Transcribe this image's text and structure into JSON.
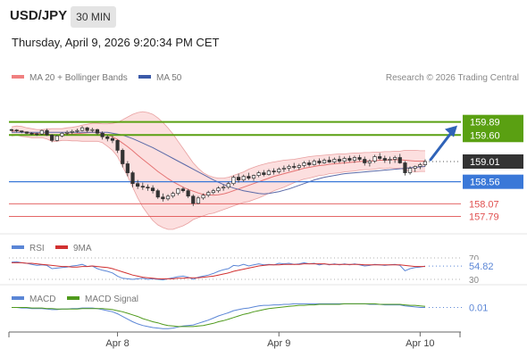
{
  "header": {
    "pair": "USD/JPY",
    "timeframe": "30 MIN",
    "timestamp": "Thursday, April 9, 2026 9:20:34 PM CET"
  },
  "legend": {
    "bollinger_label": "MA 20 + Bollinger Bands",
    "ma50_label": "MA 50",
    "rsi_label": "RSI",
    "rsi_ma_label": "9MA",
    "macd_label": "MACD",
    "macd_signal_label": "MACD Signal"
  },
  "credit": "Research © 2026 Trading Central",
  "colors": {
    "candle": "#333333",
    "bollinger_fill": "#fcd9d9",
    "bollinger_line": "#e8a0a0",
    "ma20": "#e57373",
    "ma50": "#5b6aa8",
    "resistance": "#5aa012",
    "support_pivot": "#3a78d8",
    "support": "#e05050",
    "arrow": "#2f63b8",
    "rsi": "#5b86d6",
    "rsi_ma": "#d13030",
    "macd": "#5b86d6",
    "macd_signal": "#4f9a1c",
    "price_tag": "#333333"
  },
  "chart_data": [
    {
      "type": "candlestick",
      "ylim": [
        157.6,
        160.38
      ],
      "x_ticks": [
        "Apr 8",
        "Apr 9",
        "Apr 10"
      ],
      "ohlc": [
        [
          159.72,
          159.74,
          159.68,
          159.71
        ],
        [
          159.71,
          159.73,
          159.66,
          159.69
        ],
        [
          159.69,
          159.7,
          159.64,
          159.67
        ],
        [
          159.67,
          159.68,
          159.62,
          159.64
        ],
        [
          159.64,
          159.66,
          159.6,
          159.63
        ],
        [
          159.63,
          159.65,
          159.58,
          159.62
        ],
        [
          159.62,
          159.72,
          159.6,
          159.7
        ],
        [
          159.7,
          159.74,
          159.58,
          159.6
        ],
        [
          159.6,
          159.62,
          159.44,
          159.48
        ],
        [
          159.48,
          159.6,
          159.46,
          159.58
        ],
        [
          159.58,
          159.66,
          159.55,
          159.64
        ],
        [
          159.64,
          159.7,
          159.6,
          159.66
        ],
        [
          159.66,
          159.72,
          159.62,
          159.68
        ],
        [
          159.68,
          159.74,
          159.65,
          159.7
        ],
        [
          159.7,
          159.8,
          159.68,
          159.76
        ],
        [
          159.76,
          159.78,
          159.66,
          159.7
        ],
        [
          159.7,
          159.76,
          159.66,
          159.72
        ],
        [
          159.72,
          159.74,
          159.6,
          159.64
        ],
        [
          159.64,
          159.68,
          159.5,
          159.56
        ],
        [
          159.56,
          159.6,
          159.46,
          159.52
        ],
        [
          159.52,
          159.58,
          159.42,
          159.48
        ],
        [
          159.48,
          159.5,
          159.2,
          159.26
        ],
        [
          159.26,
          159.3,
          158.88,
          158.96
        ],
        [
          158.96,
          159.02,
          158.68,
          158.76
        ],
        [
          158.76,
          158.8,
          158.44,
          158.52
        ],
        [
          158.52,
          158.6,
          158.4,
          158.46
        ],
        [
          158.46,
          158.54,
          158.38,
          158.44
        ],
        [
          158.44,
          158.5,
          158.36,
          158.42
        ],
        [
          158.42,
          158.48,
          158.3,
          158.36
        ],
        [
          158.36,
          158.4,
          158.18,
          158.22
        ],
        [
          158.22,
          158.3,
          158.12,
          158.18
        ],
        [
          158.18,
          158.28,
          158.14,
          158.24
        ],
        [
          158.24,
          158.34,
          158.2,
          158.3
        ],
        [
          158.3,
          158.42,
          158.26,
          158.4
        ],
        [
          158.4,
          158.44,
          158.32,
          158.36
        ],
        [
          158.36,
          158.4,
          158.2,
          158.24
        ],
        [
          158.24,
          158.28,
          158.02,
          158.08
        ],
        [
          158.08,
          158.24,
          158.06,
          158.2
        ],
        [
          158.2,
          158.3,
          158.16,
          158.26
        ],
        [
          158.26,
          158.36,
          158.22,
          158.32
        ],
        [
          158.32,
          158.4,
          158.28,
          158.36
        ],
        [
          158.36,
          158.46,
          158.32,
          158.42
        ],
        [
          158.42,
          158.5,
          158.36,
          158.44
        ],
        [
          158.44,
          158.56,
          158.4,
          158.52
        ],
        [
          158.52,
          158.7,
          158.48,
          158.66
        ],
        [
          158.66,
          158.74,
          158.54,
          158.6
        ],
        [
          158.6,
          158.72,
          158.56,
          158.68
        ],
        [
          158.68,
          158.76,
          158.6,
          158.64
        ],
        [
          158.64,
          158.72,
          158.58,
          158.7
        ],
        [
          158.7,
          158.8,
          158.66,
          158.76
        ],
        [
          158.76,
          158.82,
          158.68,
          158.72
        ],
        [
          158.72,
          158.84,
          158.7,
          158.8
        ],
        [
          158.8,
          158.86,
          158.72,
          158.78
        ],
        [
          158.78,
          158.88,
          158.74,
          158.84
        ],
        [
          158.84,
          158.92,
          158.78,
          158.86
        ],
        [
          158.86,
          158.94,
          158.8,
          158.9
        ],
        [
          158.9,
          158.98,
          158.84,
          158.88
        ],
        [
          158.88,
          158.96,
          158.82,
          158.92
        ],
        [
          158.92,
          159.02,
          158.88,
          158.98
        ],
        [
          158.98,
          159.04,
          158.9,
          158.94
        ],
        [
          158.94,
          159.06,
          158.92,
          159.02
        ],
        [
          159.02,
          159.08,
          158.94,
          158.98
        ],
        [
          158.98,
          159.08,
          158.96,
          159.04
        ],
        [
          159.04,
          159.12,
          158.98,
          159.0
        ],
        [
          159.0,
          159.1,
          158.96,
          159.06
        ],
        [
          159.06,
          159.14,
          158.98,
          159.02
        ],
        [
          159.02,
          159.12,
          158.96,
          159.08
        ],
        [
          159.08,
          159.14,
          159.0,
          159.04
        ],
        [
          159.04,
          159.14,
          158.98,
          159.1
        ],
        [
          159.1,
          159.16,
          159.02,
          159.06
        ],
        [
          159.06,
          159.12,
          158.92,
          158.98
        ],
        [
          158.98,
          159.06,
          158.9,
          159.02
        ],
        [
          159.02,
          159.16,
          158.98,
          159.12
        ],
        [
          159.12,
          159.2,
          159.04,
          159.08
        ],
        [
          159.08,
          159.14,
          158.98,
          159.04
        ],
        [
          159.04,
          159.12,
          158.96,
          159.06
        ],
        [
          159.06,
          159.14,
          158.98,
          159.1
        ],
        [
          159.1,
          159.18,
          158.96,
          158.98
        ],
        [
          158.98,
          159.02,
          158.7,
          158.76
        ],
        [
          158.76,
          158.9,
          158.72,
          158.86
        ],
        [
          158.86,
          158.92,
          158.78,
          158.9
        ],
        [
          158.9,
          158.98,
          158.84,
          158.94
        ],
        [
          158.94,
          159.06,
          158.9,
          159.01
        ]
      ],
      "ma20": [
        159.68,
        159.7,
        159.68,
        159.66,
        159.64,
        159.63,
        159.63,
        159.62,
        159.6,
        159.6,
        159.61,
        159.62,
        159.62,
        159.63,
        159.64,
        159.65,
        159.66,
        159.66,
        159.64,
        159.6,
        159.56,
        159.5,
        159.42,
        159.34,
        159.25,
        159.15,
        159.06,
        158.97,
        158.88,
        158.79,
        158.71,
        158.63,
        158.56,
        158.5,
        158.44,
        158.39,
        158.35,
        158.31,
        158.28,
        158.27,
        158.26,
        158.27,
        158.29,
        158.32,
        158.36,
        158.4,
        158.44,
        158.48,
        158.52,
        158.56,
        158.6,
        158.64,
        158.68,
        158.71,
        158.74,
        158.77,
        158.8,
        158.83,
        158.86,
        158.88,
        158.9,
        158.92,
        158.93,
        158.95,
        158.96,
        158.97,
        158.98,
        158.99,
        159.0,
        159.01,
        159.02,
        159.02,
        159.03,
        159.04,
        159.04,
        159.05,
        159.05,
        159.05,
        159.04,
        159.03,
        159.02,
        159.02,
        159.02
      ],
      "bb_upper": [
        159.78,
        159.8,
        159.79,
        159.76,
        159.74,
        159.72,
        159.72,
        159.73,
        159.74,
        159.74,
        159.74,
        159.76,
        159.77,
        159.79,
        159.82,
        159.84,
        159.86,
        159.86,
        159.85,
        159.85,
        159.86,
        159.88,
        159.94,
        160.0,
        160.06,
        160.1,
        160.12,
        160.1,
        160.06,
        159.98,
        159.88,
        159.76,
        159.62,
        159.46,
        159.3,
        159.14,
        158.98,
        158.86,
        158.76,
        158.7,
        158.66,
        158.64,
        158.64,
        158.66,
        158.7,
        158.74,
        158.78,
        158.84,
        158.88,
        158.92,
        158.95,
        158.98,
        159.0,
        159.02,
        159.04,
        159.05,
        159.06,
        159.08,
        159.1,
        159.12,
        159.13,
        159.14,
        159.15,
        159.16,
        159.17,
        159.18,
        159.18,
        159.19,
        159.2,
        159.2,
        159.21,
        159.21,
        159.22,
        159.22,
        159.23,
        159.23,
        159.24,
        159.24,
        159.26,
        159.26,
        159.26,
        159.25,
        159.25
      ],
      "bb_lower": [
        159.58,
        159.6,
        159.57,
        159.56,
        159.54,
        159.54,
        159.54,
        159.51,
        159.46,
        159.46,
        159.48,
        159.48,
        159.47,
        159.47,
        159.46,
        159.46,
        159.46,
        159.46,
        159.43,
        159.35,
        159.26,
        159.12,
        158.9,
        158.68,
        158.44,
        158.2,
        158.0,
        157.84,
        157.7,
        157.6,
        157.54,
        157.5,
        157.5,
        157.54,
        157.58,
        157.64,
        157.72,
        157.76,
        157.8,
        157.84,
        157.86,
        157.9,
        157.94,
        157.98,
        158.02,
        158.06,
        158.1,
        158.12,
        158.16,
        158.2,
        158.25,
        158.3,
        158.36,
        158.4,
        158.44,
        158.49,
        158.54,
        158.58,
        158.62,
        158.64,
        158.67,
        158.7,
        158.71,
        158.74,
        158.75,
        158.76,
        158.78,
        158.79,
        158.8,
        158.82,
        158.83,
        158.83,
        158.84,
        158.86,
        158.85,
        158.87,
        158.86,
        158.86,
        158.82,
        158.8,
        158.78,
        158.79,
        158.79
      ],
      "ma50": [
        159.66,
        159.66,
        159.66,
        159.66,
        159.66,
        159.66,
        159.66,
        159.66,
        159.66,
        159.66,
        159.66,
        159.66,
        159.66,
        159.66,
        159.66,
        159.66,
        159.66,
        159.66,
        159.66,
        159.66,
        159.64,
        159.62,
        159.6,
        159.56,
        159.52,
        159.47,
        159.42,
        159.37,
        159.32,
        159.26,
        159.2,
        159.14,
        159.08,
        159.02,
        158.96,
        158.9,
        158.84,
        158.78,
        158.72,
        158.66,
        158.6,
        158.55,
        158.5,
        158.46,
        158.42,
        158.39,
        158.36,
        158.34,
        158.32,
        158.3,
        158.29,
        158.3,
        158.32,
        158.34,
        158.37,
        158.4,
        158.44,
        158.48,
        158.52,
        158.56,
        158.6,
        158.63,
        158.66,
        158.68,
        158.7,
        158.72,
        158.74,
        158.75,
        158.76,
        158.77,
        158.78,
        158.79,
        158.8,
        158.81,
        158.82,
        158.83,
        158.84,
        158.85,
        158.86,
        158.87,
        158.88,
        158.89,
        158.9
      ],
      "levels": {
        "resistance": [
          159.89,
          159.6
        ],
        "pivot": 158.56,
        "support": [
          158.07,
          157.79
        ]
      },
      "last_price": 159.01,
      "target": 159.89
    },
    {
      "type": "line",
      "name": "RSI",
      "ylim": [
        25,
        75
      ],
      "ticks": [
        30,
        70
      ],
      "last_value": 54.82,
      "rsi": [
        62,
        63,
        61,
        60,
        58,
        56,
        57,
        56,
        50,
        51,
        52,
        53,
        55,
        56,
        58,
        54,
        55,
        50,
        47,
        45,
        42,
        36,
        32,
        31,
        30,
        31,
        32,
        30,
        31,
        30,
        29,
        31,
        33,
        35,
        36,
        34,
        30,
        34,
        36,
        38,
        41,
        45,
        48,
        50,
        56,
        55,
        58,
        55,
        57,
        59,
        57,
        58,
        57,
        60,
        59,
        60,
        58,
        59,
        61,
        59,
        60,
        57,
        59,
        57,
        59,
        57,
        59,
        57,
        59,
        57,
        55,
        56,
        58,
        57,
        56,
        57,
        58,
        56,
        46,
        50,
        52,
        53,
        54.82
      ],
      "rsi_ma": [
        61,
        61,
        61,
        60,
        60,
        59,
        58,
        57,
        56,
        55,
        54,
        54,
        53,
        53,
        54,
        54,
        55,
        54,
        53,
        52,
        50,
        47,
        44,
        41,
        38,
        36,
        34,
        33,
        32,
        31,
        31,
        31,
        31,
        32,
        32,
        33,
        33,
        33,
        34,
        35,
        36,
        38,
        40,
        42,
        45,
        47,
        49,
        51,
        53,
        55,
        56,
        57,
        57,
        57,
        58,
        58,
        58,
        58,
        59,
        59,
        59,
        59,
        59,
        58,
        58,
        58,
        58,
        58,
        58,
        58,
        57,
        57,
        57,
        57,
        57,
        57,
        57,
        57,
        56,
        55,
        54,
        54,
        54
      ]
    },
    {
      "type": "line",
      "name": "MACD",
      "ylim": [
        -0.42,
        0.12
      ],
      "last_value": 0.01,
      "macd": [
        0.01,
        0.01,
        0.0,
        0.0,
        -0.01,
        -0.01,
        -0.01,
        -0.02,
        -0.03,
        -0.03,
        -0.02,
        -0.02,
        -0.01,
        -0.01,
        0.0,
        0.0,
        0.0,
        -0.01,
        -0.03,
        -0.05,
        -0.07,
        -0.11,
        -0.16,
        -0.21,
        -0.26,
        -0.3,
        -0.33,
        -0.35,
        -0.37,
        -0.38,
        -0.39,
        -0.39,
        -0.38,
        -0.36,
        -0.34,
        -0.33,
        -0.32,
        -0.29,
        -0.26,
        -0.23,
        -0.19,
        -0.15,
        -0.12,
        -0.09,
        -0.05,
        -0.03,
        -0.01,
        0.0,
        0.02,
        0.04,
        0.05,
        0.05,
        0.06,
        0.06,
        0.07,
        0.07,
        0.08,
        0.08,
        0.08,
        0.08,
        0.08,
        0.08,
        0.08,
        0.08,
        0.08,
        0.08,
        0.08,
        0.08,
        0.08,
        0.08,
        0.08,
        0.07,
        0.07,
        0.07,
        0.06,
        0.06,
        0.06,
        0.06,
        0.04,
        0.03,
        0.02,
        0.01,
        0.01
      ],
      "signal": [
        0.01,
        0.01,
        0.01,
        0.01,
        0.0,
        0.0,
        0.0,
        -0.01,
        -0.01,
        -0.02,
        -0.02,
        -0.02,
        -0.02,
        -0.02,
        -0.01,
        -0.01,
        -0.01,
        -0.01,
        -0.01,
        -0.02,
        -0.03,
        -0.05,
        -0.07,
        -0.1,
        -0.13,
        -0.16,
        -0.2,
        -0.23,
        -0.26,
        -0.28,
        -0.31,
        -0.33,
        -0.34,
        -0.35,
        -0.35,
        -0.35,
        -0.35,
        -0.34,
        -0.33,
        -0.31,
        -0.29,
        -0.26,
        -0.24,
        -0.21,
        -0.18,
        -0.15,
        -0.12,
        -0.1,
        -0.07,
        -0.05,
        -0.03,
        -0.01,
        0.0,
        0.01,
        0.02,
        0.03,
        0.04,
        0.05,
        0.05,
        0.06,
        0.06,
        0.07,
        0.07,
        0.07,
        0.07,
        0.07,
        0.08,
        0.08,
        0.08,
        0.08,
        0.08,
        0.08,
        0.08,
        0.07,
        0.07,
        0.07,
        0.07,
        0.07,
        0.06,
        0.05,
        0.05,
        0.04,
        0.03
      ]
    }
  ]
}
